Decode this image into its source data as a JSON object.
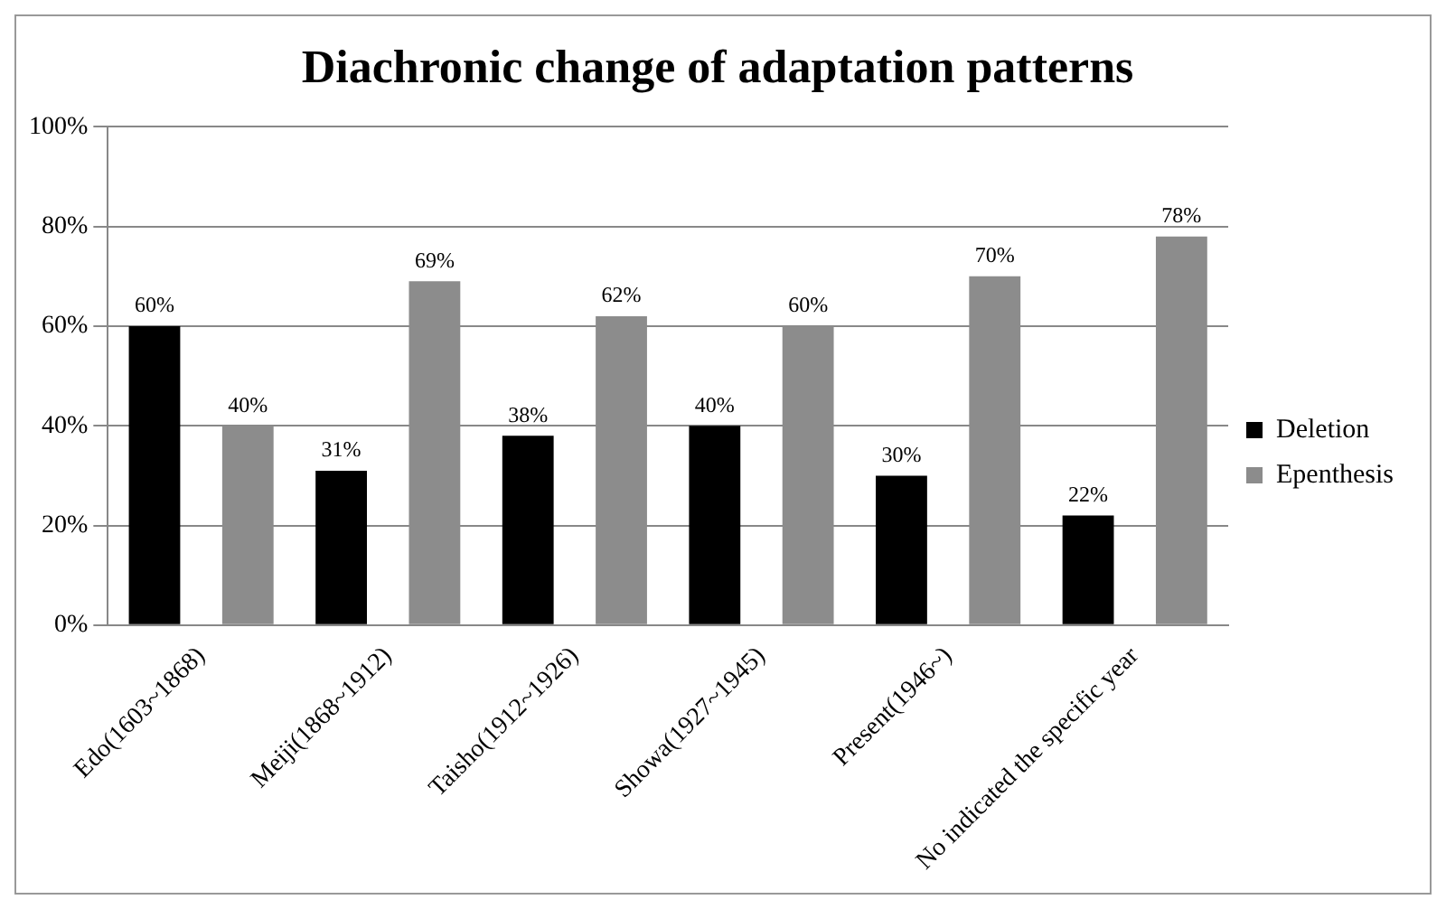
{
  "chart_data": {
    "type": "bar",
    "title": "Diachronic change of adaptation patterns",
    "categories": [
      "Edo(1603~1868)",
      "Meiji(1868~1912)",
      "Taisho(1912~1926)",
      "Showa(1927~1945)",
      "Present(1946~)",
      "No indicated the specific year"
    ],
    "series": [
      {
        "name": "Deletion",
        "color": "#000000",
        "values": [
          60,
          31,
          38,
          40,
          30,
          22
        ],
        "value_labels": [
          "60%",
          "31%",
          "38%",
          "40%",
          "30%",
          "22%"
        ]
      },
      {
        "name": "Epenthesis",
        "color": "#8c8c8c",
        "values": [
          40,
          69,
          62,
          60,
          70,
          78
        ],
        "value_labels": [
          "40%",
          "69%",
          "62%",
          "60%",
          "70%",
          "78%"
        ]
      }
    ],
    "ylim": [
      0,
      100
    ],
    "yticks": [
      {
        "value": 0,
        "label": "0%"
      },
      {
        "value": 20,
        "label": "20%"
      },
      {
        "value": 40,
        "label": "40%"
      },
      {
        "value": 60,
        "label": "60%"
      },
      {
        "value": 80,
        "label": "80%"
      },
      {
        "value": 100,
        "label": "100%"
      }
    ],
    "grid": "y",
    "legend": "right"
  }
}
